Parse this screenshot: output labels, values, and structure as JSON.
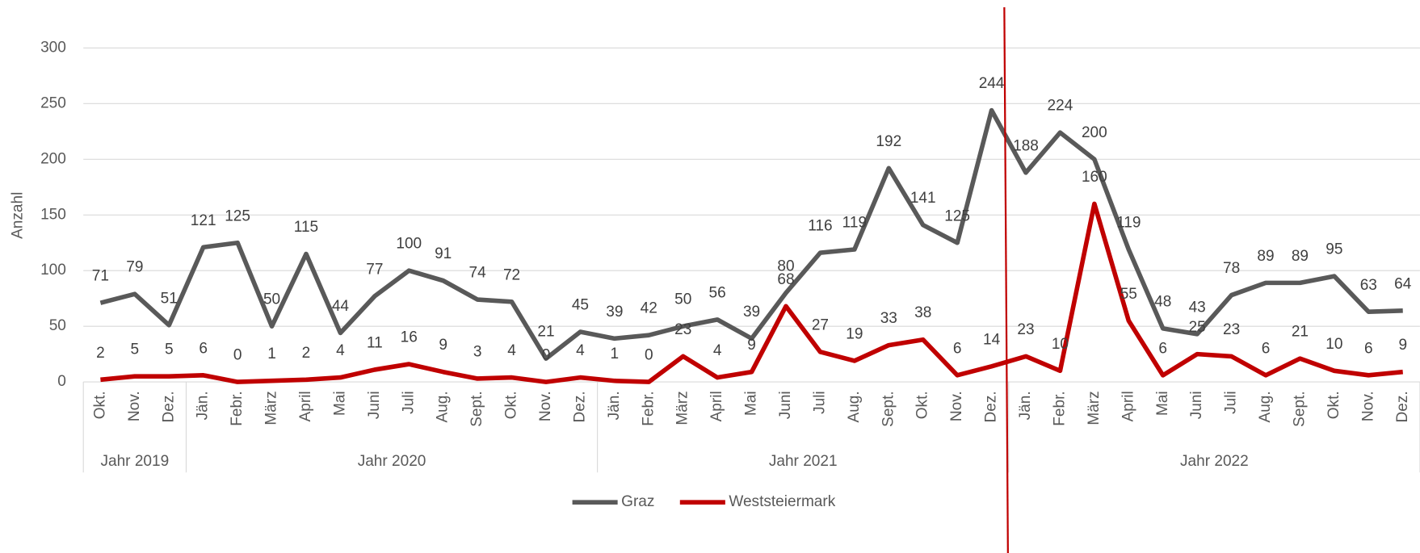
{
  "chart_data": {
    "type": "line",
    "y_axis_label": "Anzahl",
    "groups": [
      {
        "label": "Jahr 2019",
        "categories": [
          "Okt.",
          "Nov.",
          "Dez."
        ]
      },
      {
        "label": "Jahr 2020",
        "categories": [
          "Jän.",
          "Febr.",
          "März",
          "April",
          "Mai",
          "Juni",
          "Juli",
          "Aug.",
          "Sept.",
          "Okt.",
          "Nov.",
          "Dez."
        ]
      },
      {
        "label": "Jahr 2021",
        "categories": [
          "Jän.",
          "Febr.",
          "März",
          "April",
          "Mai",
          "Juni",
          "Juli",
          "Aug.",
          "Sept.",
          "Okt.",
          "Nov.",
          "Dez."
        ]
      },
      {
        "label": "Jahr 2022",
        "categories": [
          "Jän.",
          "Febr.",
          "März",
          "April",
          "Mai",
          "Juni",
          "Juli",
          "Aug.",
          "Sept.",
          "Okt.",
          "Nov.",
          "Dez."
        ]
      }
    ],
    "series": [
      {
        "name": "Graz",
        "color": "#595959",
        "values": [
          71,
          79,
          51,
          121,
          125,
          50,
          115,
          44,
          77,
          100,
          91,
          74,
          72,
          21,
          45,
          39,
          42,
          50,
          56,
          39,
          80,
          116,
          119,
          192,
          141,
          125,
          244,
          188,
          224,
          200,
          119,
          48,
          43,
          78,
          89,
          89,
          95,
          63,
          64
        ]
      },
      {
        "name": "Weststeiermark",
        "color": "#c00000",
        "values": [
          2,
          5,
          5,
          6,
          0,
          1,
          2,
          4,
          11,
          16,
          9,
          3,
          4,
          0,
          4,
          1,
          0,
          23,
          4,
          9,
          68,
          27,
          19,
          33,
          38,
          6,
          14,
          23,
          10,
          160,
          55,
          6,
          25,
          23,
          6,
          21,
          10,
          6,
          9
        ]
      }
    ],
    "ylim": [
      0,
      300
    ],
    "yticks": [
      0,
      50,
      100,
      150,
      200,
      250,
      300
    ],
    "grid": true,
    "legend": "bottom"
  }
}
